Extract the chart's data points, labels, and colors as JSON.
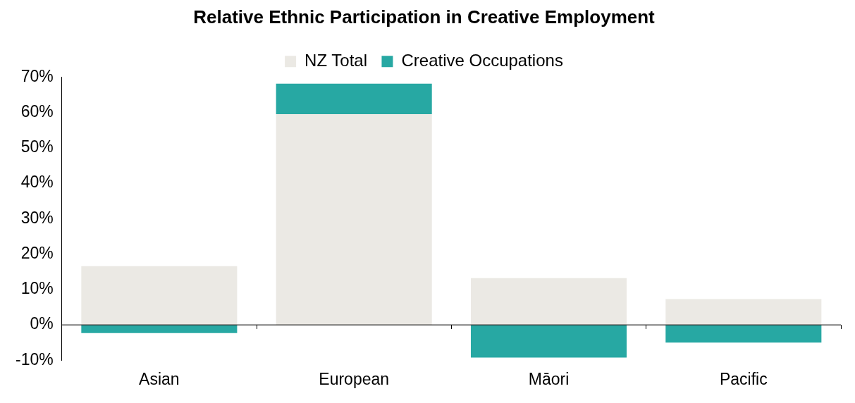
{
  "chart_data": {
    "type": "bar",
    "title": "Relative Ethnic Participation in Creative Employment",
    "categories": [
      "Asian",
      "European",
      "Māori",
      "Pacific"
    ],
    "stacked": true,
    "legend": "top",
    "grid": false,
    "series": [
      {
        "name": "NZ Total",
        "color": "#ebe9e4",
        "values": [
          16.6,
          59.5,
          13.2,
          7.3
        ]
      },
      {
        "name": "Creative Occupations",
        "color": "#27a8a3",
        "values": [
          -2.3,
          8.6,
          -9.2,
          -5.0
        ]
      }
    ],
    "ref_lines": [
      {
        "axis": "y",
        "value": 0,
        "color": "#000000"
      }
    ],
    "ylim": [
      -10,
      70
    ],
    "yticks": [
      {
        "value": -10,
        "label": "-10%"
      },
      {
        "value": 0,
        "label": "0%"
      },
      {
        "value": 10,
        "label": "10%"
      },
      {
        "value": 20,
        "label": "20%"
      },
      {
        "value": 30,
        "label": "30%"
      },
      {
        "value": 40,
        "label": "40%"
      },
      {
        "value": 50,
        "label": "50%"
      },
      {
        "value": 60,
        "label": "60%"
      },
      {
        "value": 70,
        "label": "70%"
      }
    ]
  }
}
